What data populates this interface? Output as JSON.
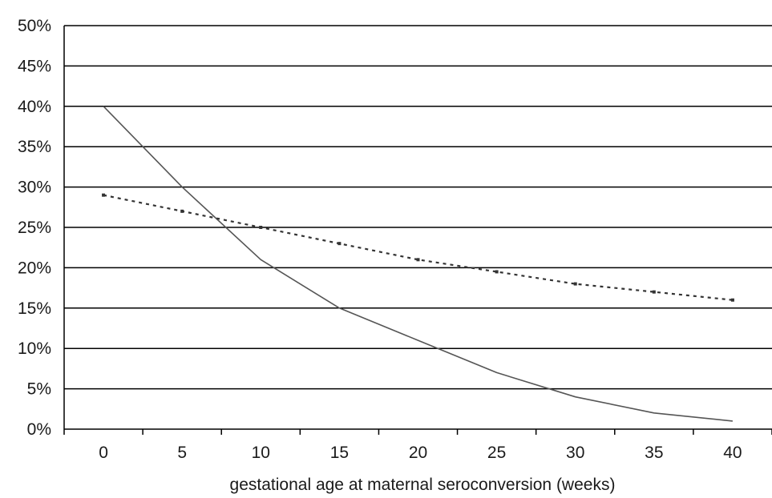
{
  "chart_data": {
    "type": "line",
    "title": "",
    "xlabel": "gestational age at maternal seroconversion (weeks)",
    "ylabel": "",
    "x": [
      0,
      5,
      10,
      15,
      20,
      25,
      30,
      35,
      40
    ],
    "x_ticks": [
      "0",
      "5",
      "10",
      "15",
      "20",
      "25",
      "30",
      "35",
      "40"
    ],
    "y_ticks": [
      "0%",
      "5%",
      "10%",
      "15%",
      "20%",
      "25%",
      "30%",
      "35%",
      "40%",
      "45%",
      "50%"
    ],
    "xlim": [
      -2.5,
      42.5
    ],
    "ylim": [
      0,
      50
    ],
    "grid": "horizontal",
    "legend": "none",
    "series": [
      {
        "style": "solid",
        "color": "#555555",
        "values": [
          40,
          30,
          21,
          15,
          11,
          7,
          4,
          2,
          1
        ]
      },
      {
        "style": "dotted",
        "color": "#333333",
        "values": [
          29,
          27,
          25,
          23,
          21,
          19.5,
          18,
          17,
          16
        ]
      }
    ]
  }
}
